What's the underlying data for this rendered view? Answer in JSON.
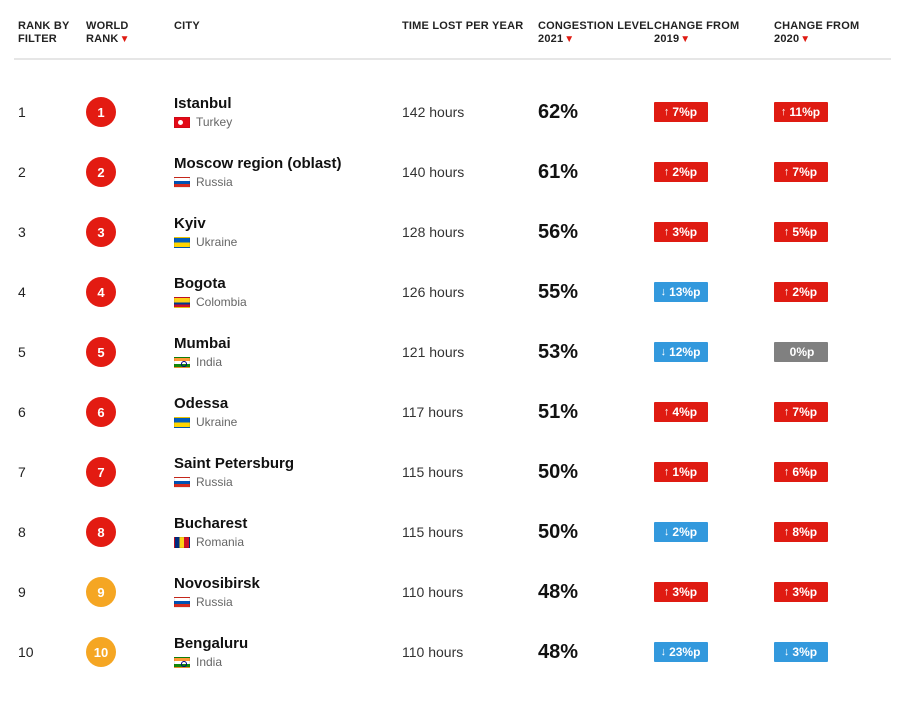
{
  "colors": {
    "accent_red": "#df1b12",
    "badge_up": "#df1b12",
    "badge_down": "#3399dd",
    "badge_neutral": "#808080",
    "rank_top": "#e31b12",
    "rank_mid": "#f5a623",
    "text": "#222222",
    "muted": "#666666",
    "divider": "#e6e6e6"
  },
  "columns": {
    "rank_by_filter": "RANK BY FILTER",
    "world_rank": "WORLD RANK",
    "city": "CITY",
    "time_lost": "TIME LOST PER YEAR",
    "congestion": "CONGESTION LEVEL 2021",
    "change_2019": "CHANGE FROM 2019",
    "change_2020": "CHANGE FROM 2020"
  },
  "sort_indicator": "▼",
  "rows": [
    {
      "filter_rank": "1",
      "world_rank": "1",
      "rank_color": "#e31b12",
      "city": "Istanbul",
      "country": "Turkey",
      "flag": "tr",
      "time_lost": "142 hours",
      "congestion": "62%",
      "change_2019": {
        "dir": "up",
        "value": "7%p",
        "color": "#df1b12"
      },
      "change_2020": {
        "dir": "up",
        "value": "11%p",
        "color": "#df1b12"
      }
    },
    {
      "filter_rank": "2",
      "world_rank": "2",
      "rank_color": "#e31b12",
      "city": "Moscow region (oblast)",
      "country": "Russia",
      "flag": "ru",
      "time_lost": "140 hours",
      "congestion": "61%",
      "change_2019": {
        "dir": "up",
        "value": "2%p",
        "color": "#df1b12"
      },
      "change_2020": {
        "dir": "up",
        "value": "7%p",
        "color": "#df1b12"
      }
    },
    {
      "filter_rank": "3",
      "world_rank": "3",
      "rank_color": "#e31b12",
      "city": "Kyiv",
      "country": "Ukraine",
      "flag": "ua",
      "time_lost": "128 hours",
      "congestion": "56%",
      "change_2019": {
        "dir": "up",
        "value": "3%p",
        "color": "#df1b12"
      },
      "change_2020": {
        "dir": "up",
        "value": "5%p",
        "color": "#df1b12"
      }
    },
    {
      "filter_rank": "4",
      "world_rank": "4",
      "rank_color": "#e31b12",
      "city": "Bogota",
      "country": "Colombia",
      "flag": "co",
      "time_lost": "126 hours",
      "congestion": "55%",
      "change_2019": {
        "dir": "down",
        "value": "13%p",
        "color": "#3399dd"
      },
      "change_2020": {
        "dir": "up",
        "value": "2%p",
        "color": "#df1b12"
      }
    },
    {
      "filter_rank": "5",
      "world_rank": "5",
      "rank_color": "#e31b12",
      "city": "Mumbai",
      "country": "India",
      "flag": "in",
      "time_lost": "121 hours",
      "congestion": "53%",
      "change_2019": {
        "dir": "down",
        "value": "12%p",
        "color": "#3399dd"
      },
      "change_2020": {
        "dir": "flat",
        "value": "0%p",
        "color": "#808080"
      }
    },
    {
      "filter_rank": "6",
      "world_rank": "6",
      "rank_color": "#e31b12",
      "city": "Odessa",
      "country": "Ukraine",
      "flag": "ua",
      "time_lost": "117 hours",
      "congestion": "51%",
      "change_2019": {
        "dir": "up",
        "value": "4%p",
        "color": "#df1b12"
      },
      "change_2020": {
        "dir": "up",
        "value": "7%p",
        "color": "#df1b12"
      }
    },
    {
      "filter_rank": "7",
      "world_rank": "7",
      "rank_color": "#e31b12",
      "city": "Saint Petersburg",
      "country": "Russia",
      "flag": "ru",
      "time_lost": "115 hours",
      "congestion": "50%",
      "change_2019": {
        "dir": "up",
        "value": "1%p",
        "color": "#df1b12"
      },
      "change_2020": {
        "dir": "up",
        "value": "6%p",
        "color": "#df1b12"
      }
    },
    {
      "filter_rank": "8",
      "world_rank": "8",
      "rank_color": "#e31b12",
      "city": "Bucharest",
      "country": "Romania",
      "flag": "ro",
      "time_lost": "115 hours",
      "congestion": "50%",
      "change_2019": {
        "dir": "down",
        "value": "2%p",
        "color": "#3399dd"
      },
      "change_2020": {
        "dir": "up",
        "value": "8%p",
        "color": "#df1b12"
      }
    },
    {
      "filter_rank": "9",
      "world_rank": "9",
      "rank_color": "#f5a623",
      "city": "Novosibirsk",
      "country": "Russia",
      "flag": "ru",
      "time_lost": "110 hours",
      "congestion": "48%",
      "change_2019": {
        "dir": "up",
        "value": "3%p",
        "color": "#df1b12"
      },
      "change_2020": {
        "dir": "up",
        "value": "3%p",
        "color": "#df1b12"
      }
    },
    {
      "filter_rank": "10",
      "world_rank": "10",
      "rank_color": "#f5a623",
      "city": "Bengaluru",
      "country": "India",
      "flag": "in",
      "time_lost": "110 hours",
      "congestion": "48%",
      "change_2019": {
        "dir": "down",
        "value": "23%p",
        "color": "#3399dd"
      },
      "change_2020": {
        "dir": "down",
        "value": "3%p",
        "color": "#3399dd"
      }
    }
  ],
  "arrows": {
    "up": "↑",
    "down": "↓",
    "flat": ""
  },
  "row_chevron": "›"
}
